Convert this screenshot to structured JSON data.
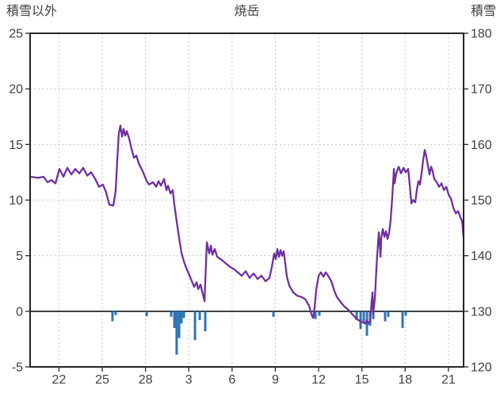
{
  "header": {
    "left_axis_title": "積雪以外",
    "title": "焼岳",
    "right_axis_title": "積雪"
  },
  "chart_data": {
    "type": "line",
    "title": "焼岳",
    "grid": true,
    "left_axis": {
      "title": "積雪以外",
      "min": -5,
      "max": 25,
      "ticks": [
        25,
        20,
        15,
        10,
        5,
        0,
        -5
      ]
    },
    "right_axis": {
      "title": "積雪",
      "min": 120,
      "max": 180,
      "ticks": [
        180,
        170,
        160,
        150,
        140,
        130,
        120
      ]
    },
    "x_axis": {
      "min": 0,
      "max": 30.05,
      "ticks": [
        {
          "pos": 2,
          "label": "22"
        },
        {
          "pos": 5,
          "label": "25"
        },
        {
          "pos": 8,
          "label": "28"
        },
        {
          "pos": 11,
          "label": "3"
        },
        {
          "pos": 14,
          "label": "6"
        },
        {
          "pos": 17,
          "label": "9"
        },
        {
          "pos": 20,
          "label": "12"
        },
        {
          "pos": 23,
          "label": "15"
        },
        {
          "pos": 26,
          "label": "18"
        },
        {
          "pos": 29,
          "label": "21"
        }
      ]
    },
    "zero_line_value": 0,
    "colors": {
      "line": "#7030A0",
      "bar": "#2E74B5",
      "grid": "#c8c8c8",
      "axis_text": "#404040",
      "border": "#262626",
      "zero_line": "#000000"
    },
    "series": [
      {
        "name": "snow-other-line",
        "type": "line",
        "color": "#7030A0",
        "points": [
          [
            0,
            12.1
          ],
          [
            0.55,
            12
          ],
          [
            0.93,
            12.1
          ],
          [
            1.21,
            11.6
          ],
          [
            1.48,
            11.8
          ],
          [
            1.76,
            11.5
          ],
          [
            2.03,
            12.8
          ],
          [
            2.31,
            12.1
          ],
          [
            2.58,
            12.9
          ],
          [
            2.86,
            12.3
          ],
          [
            3.13,
            12.8
          ],
          [
            3.41,
            12.4
          ],
          [
            3.68,
            12.9
          ],
          [
            3.96,
            12.2
          ],
          [
            4.23,
            12.5
          ],
          [
            4.51,
            11.9
          ],
          [
            4.78,
            11.2
          ],
          [
            5.05,
            11.4
          ],
          [
            5.27,
            10.7
          ],
          [
            5.49,
            9.6
          ],
          [
            5.77,
            9.5
          ],
          [
            5.93,
            10.8
          ],
          [
            6.04,
            13.5
          ],
          [
            6.15,
            16
          ],
          [
            6.26,
            16.7
          ],
          [
            6.37,
            15.7
          ],
          [
            6.48,
            16.4
          ],
          [
            6.59,
            15.8
          ],
          [
            6.7,
            16.2
          ],
          [
            6.87,
            15.5
          ],
          [
            7.03,
            14.6
          ],
          [
            7.2,
            13.8
          ],
          [
            7.36,
            14
          ],
          [
            7.53,
            13.3
          ],
          [
            7.8,
            12.6
          ],
          [
            8.08,
            11.7
          ],
          [
            8.24,
            11.4
          ],
          [
            8.52,
            11.6
          ],
          [
            8.74,
            11.2
          ],
          [
            8.9,
            11.7
          ],
          [
            9.07,
            11.3
          ],
          [
            9.29,
            11.9
          ],
          [
            9.45,
            10.9
          ],
          [
            9.56,
            11.3
          ],
          [
            9.73,
            10.6
          ],
          [
            9.89,
            10.9
          ],
          [
            10,
            9.6
          ],
          [
            10.16,
            8.1
          ],
          [
            10.33,
            6.6
          ],
          [
            10.49,
            5.3
          ],
          [
            10.66,
            4.5
          ],
          [
            10.82,
            3.9
          ],
          [
            10.99,
            3.4
          ],
          [
            11.21,
            2.7
          ],
          [
            11.37,
            2.2
          ],
          [
            11.54,
            2.6
          ],
          [
            11.65,
            2
          ],
          [
            11.81,
            2.4
          ],
          [
            11.98,
            1.5
          ],
          [
            12.09,
            0.9
          ],
          [
            12.14,
            2.6
          ],
          [
            12.25,
            6.2
          ],
          [
            12.42,
            5.2
          ],
          [
            12.53,
            5.9
          ],
          [
            12.64,
            5.1
          ],
          [
            12.8,
            5.6
          ],
          [
            12.97,
            4.9
          ],
          [
            13.3,
            4.6
          ],
          [
            13.57,
            4.3
          ],
          [
            13.85,
            4
          ],
          [
            14.12,
            3.8
          ],
          [
            14.4,
            3.5
          ],
          [
            14.67,
            3.2
          ],
          [
            14.95,
            3.6
          ],
          [
            15.22,
            3
          ],
          [
            15.49,
            3.4
          ],
          [
            15.77,
            2.9
          ],
          [
            16.04,
            3.2
          ],
          [
            16.32,
            2.7
          ],
          [
            16.59,
            3
          ],
          [
            16.76,
            4
          ],
          [
            16.92,
            5.2
          ],
          [
            17.03,
            4.7
          ],
          [
            17.14,
            5.6
          ],
          [
            17.25,
            4.9
          ],
          [
            17.36,
            5.5
          ],
          [
            17.47,
            5
          ],
          [
            17.58,
            5.4
          ],
          [
            17.69,
            4.3
          ],
          [
            17.8,
            3.1
          ],
          [
            17.97,
            2.3
          ],
          [
            18.24,
            1.7
          ],
          [
            18.52,
            1.4
          ],
          [
            18.79,
            1.3
          ],
          [
            19.07,
            1.1
          ],
          [
            19.34,
            0.5
          ],
          [
            19.51,
            -0.3
          ],
          [
            19.62,
            -0.6
          ],
          [
            19.73,
            0.4
          ],
          [
            19.84,
            2
          ],
          [
            20,
            3.2
          ],
          [
            20.16,
            3.5
          ],
          [
            20.33,
            3.1
          ],
          [
            20.49,
            3.5
          ],
          [
            20.66,
            3.2
          ],
          [
            20.88,
            2.7
          ],
          [
            21.1,
            1.8
          ],
          [
            21.26,
            1.3
          ],
          [
            21.54,
            0.8
          ],
          [
            21.81,
            0.4
          ],
          [
            22.09,
            0.1
          ],
          [
            22.36,
            -0.3
          ],
          [
            22.64,
            -0.7
          ],
          [
            22.91,
            -0.9
          ],
          [
            23.08,
            -1
          ],
          [
            23.24,
            -1.1
          ],
          [
            23.35,
            -0.8
          ],
          [
            23.46,
            -1.1
          ],
          [
            23.57,
            -0.9
          ],
          [
            23.68,
            0.9
          ],
          [
            23.74,
            1.7
          ],
          [
            23.79,
            -0.2
          ],
          [
            23.9,
            1.2
          ],
          [
            24.01,
            4
          ],
          [
            24.12,
            6.2
          ],
          [
            24.18,
            7.1
          ],
          [
            24.29,
            4.9
          ],
          [
            24.34,
            6.6
          ],
          [
            24.45,
            7.4
          ],
          [
            24.56,
            6.7
          ],
          [
            24.67,
            7.2
          ],
          [
            24.78,
            6.5
          ],
          [
            24.89,
            7.1
          ],
          [
            25,
            8.3
          ],
          [
            25.11,
            10.4
          ],
          [
            25.22,
            12.8
          ],
          [
            25.27,
            11.5
          ],
          [
            25.38,
            12.4
          ],
          [
            25.55,
            13
          ],
          [
            25.71,
            12.4
          ],
          [
            25.88,
            12.9
          ],
          [
            26.04,
            12.5
          ],
          [
            26.21,
            12.8
          ],
          [
            26.32,
            11.3
          ],
          [
            26.43,
            9.7
          ],
          [
            26.54,
            10
          ],
          [
            26.7,
            9.8
          ],
          [
            26.81,
            10.9
          ],
          [
            26.92,
            11.7
          ],
          [
            27.03,
            11.4
          ],
          [
            27.14,
            12.4
          ],
          [
            27.25,
            13.6
          ],
          [
            27.36,
            14.5
          ],
          [
            27.47,
            13.9
          ],
          [
            27.58,
            13.1
          ],
          [
            27.69,
            12.3
          ],
          [
            27.8,
            13
          ],
          [
            27.91,
            12.6
          ],
          [
            28.02,
            11.9
          ],
          [
            28.19,
            11.6
          ],
          [
            28.35,
            11.2
          ],
          [
            28.52,
            11.5
          ],
          [
            28.68,
            10.9
          ],
          [
            28.85,
            11.2
          ],
          [
            29.01,
            10.5
          ],
          [
            29.18,
            10.1
          ],
          [
            29.34,
            9.3
          ],
          [
            29.51,
            8.8
          ],
          [
            29.67,
            9
          ],
          [
            29.84,
            8.4
          ],
          [
            29.95,
            8.1
          ],
          [
            30.05,
            6.6
          ]
        ]
      },
      {
        "name": "snow-decrease-bars",
        "type": "bar",
        "color": "#2E74B5",
        "points": [
          [
            5.71,
            -0.9
          ],
          [
            5.93,
            -0.35
          ],
          [
            8.08,
            -0.45
          ],
          [
            9.78,
            -0.5
          ],
          [
            10,
            -1.5
          ],
          [
            10.16,
            -3.9
          ],
          [
            10.33,
            -2.4
          ],
          [
            10.49,
            -1.1
          ],
          [
            10.66,
            -0.6
          ],
          [
            11.43,
            -2.6
          ],
          [
            11.76,
            -0.8
          ],
          [
            12.14,
            -1.8
          ],
          [
            16.87,
            -0.5
          ],
          [
            19.78,
            -0.7
          ],
          [
            20.05,
            -0.4
          ],
          [
            22.64,
            -0.8
          ],
          [
            22.91,
            -1.6
          ],
          [
            23.13,
            -1
          ],
          [
            23.35,
            -2.2
          ],
          [
            23.57,
            -1.3
          ],
          [
            23.79,
            -0.7
          ],
          [
            24.61,
            -0.9
          ],
          [
            24.83,
            -0.5
          ],
          [
            25.82,
            -1.5
          ],
          [
            26.04,
            -0.4
          ]
        ]
      }
    ]
  }
}
